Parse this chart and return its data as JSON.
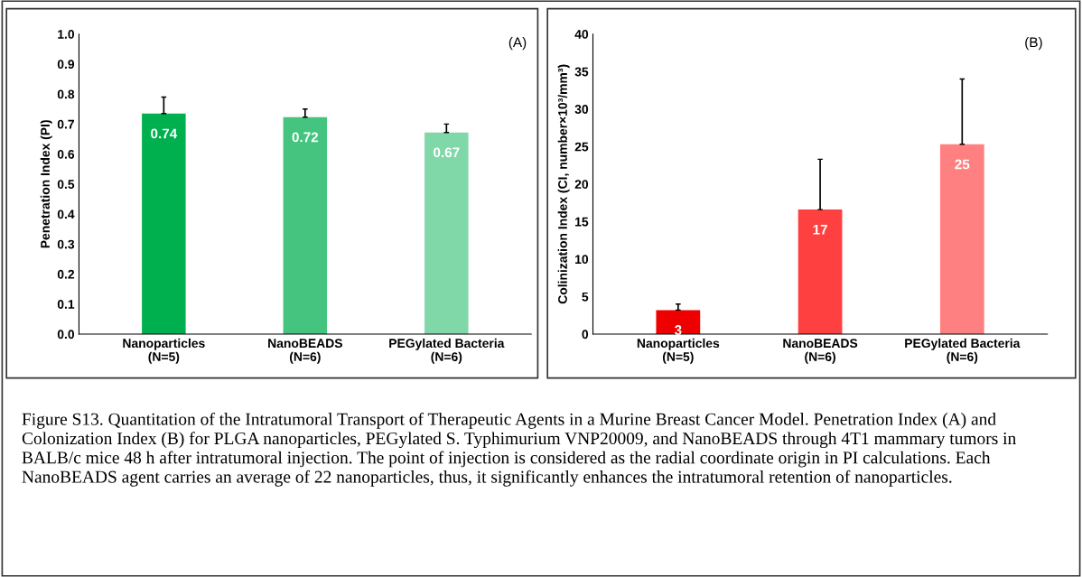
{
  "chart_data": [
    {
      "type": "bar",
      "ylabel": "Penetration Index (PI)",
      "categories": [
        "Nanoparticles\n(N=5)",
        "NanoBEADS\n(N=6)",
        "PEGylated Bacteria\n(N=6)"
      ],
      "values": [
        0.735,
        0.723,
        0.672
      ],
      "colors": [
        "#00b04f",
        "#44c47f",
        "#80d8a8"
      ],
      "errors": [
        [
          0.735,
          0.79
        ],
        [
          0.723,
          0.75
        ],
        [
          0.672,
          0.7
        ]
      ],
      "value_labels": [
        "0.74",
        "0.72",
        "0.67"
      ],
      "ylim": [
        0,
        1.0
      ],
      "yticks": [
        {
          "value": 0,
          "label": "0.0"
        },
        0.1,
        0.2,
        0.3,
        0.4,
        0.5,
        0.6,
        0.7,
        0.8,
        0.9,
        {
          "value": 1.0,
          "label": "1.0"
        }
      ],
      "grid": false,
      "annotations": [
        "(A)"
      ]
    },
    {
      "type": "bar",
      "ylabel": "Colinization Index (CI, number×10³/mm³)",
      "categories": [
        "Nanoparticles\n(N=5)",
        "NanoBEADS\n(N=6)",
        "PEGylated Bacteria\n(N=6)"
      ],
      "values": [
        3.2,
        16.6,
        25.3
      ],
      "colors": [
        "#ee0000",
        "#ff4040",
        "#ff8080"
      ],
      "errors": [
        [
          3.2,
          4.0
        ],
        [
          16.6,
          23.3
        ],
        [
          25.3,
          34.0
        ]
      ],
      "value_labels": [
        "3",
        "17",
        "25"
      ],
      "ylim": [
        0,
        40
      ],
      "yticks": [
        0,
        5,
        10,
        15,
        20,
        25,
        30,
        35,
        40
      ],
      "grid": false,
      "annotations": [
        "(B)",
        "Figure S13. Quantitation of the Intratumoral Transport of Therapeutic Agents in a Murine Breast Cancer Model. Penetration Index (A) and Colonization Index (B) for PLGA nanoparticles, PEGylated S. Typhimurium VNP20009, and NanoBEADS through 4T1 mammary tumors in BALB/c mice 48 h after intratumoral injection. The point of injection is considered as the radial coordinate origin in PI calculations. Each NanoBEADS agent carries an average of 22 nanoparticles, thus, it significantly enhances the intratumoral retention of nanoparticles."
      ]
    }
  ]
}
